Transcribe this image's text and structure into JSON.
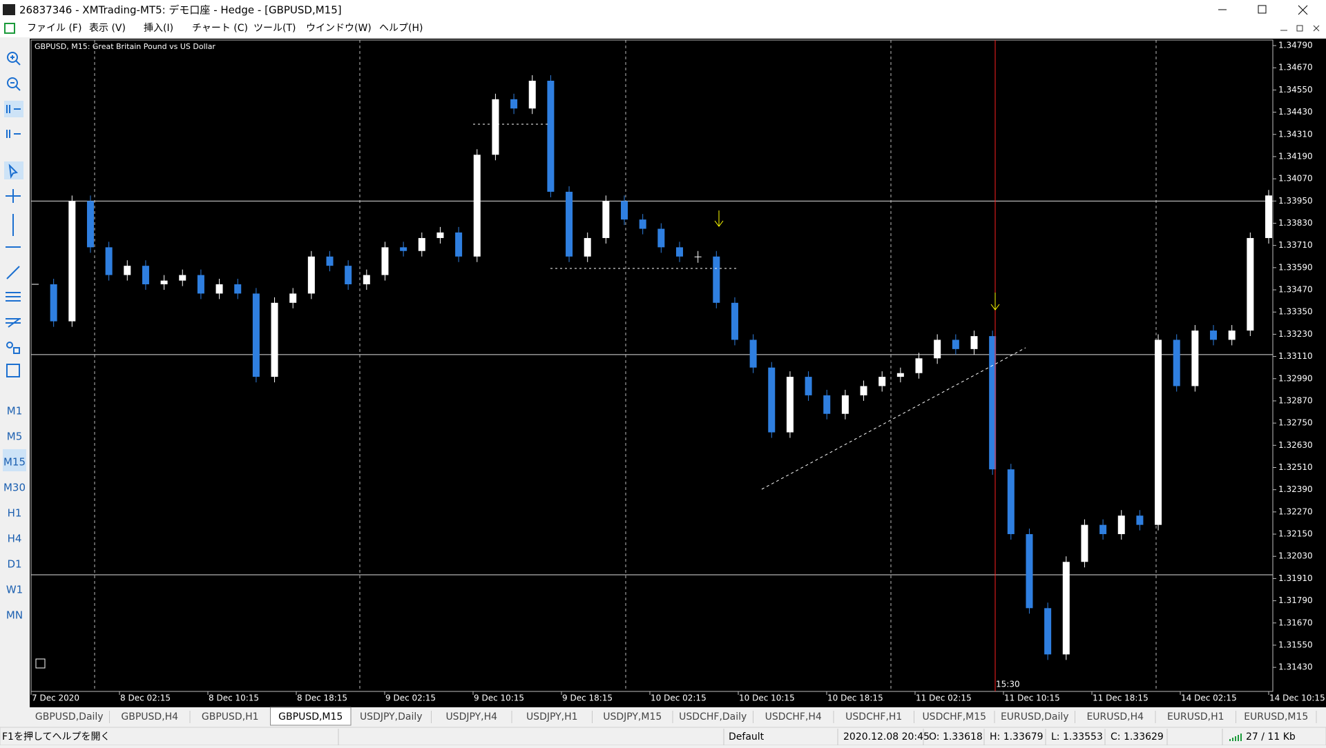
{
  "window": {
    "title": "26837346 - XMTrading-MT5: デモ口座 - Hedge - [GBPUSD,M15]"
  },
  "menu": [
    "ファイル (F)",
    "表示 (V)",
    "挿入(I)",
    "チャート (C)",
    "ツール(T)",
    "ウインドウ(W)",
    "ヘルプ(H)"
  ],
  "timeframes": [
    "M1",
    "M5",
    "M15",
    "M30",
    "H1",
    "H4",
    "D1",
    "W1",
    "MN"
  ],
  "chart_data": {
    "type": "candlestick",
    "title": "GBPUSD, M15:  Great Britain Pound vs US Dollar",
    "categories": [
      "7 Dec 2020",
      "8 Dec 02:15",
      "8 Dec 10:15",
      "8 Dec 18:15",
      "9 Dec 02:15",
      "9 Dec 10:15",
      "9 Dec 18:15",
      "10 Dec 02:15",
      "10 Dec 10:15",
      "10 Dec 18:15",
      "11 Dec 02:15",
      "11 Dec 10:15",
      "11 Dec 18:15",
      "14 Dec 02:15",
      "14 Dec 10:15"
    ],
    "closes": [
      1.335,
      1.333,
      1.3395,
      1.337,
      1.3355,
      1.336,
      1.335,
      1.3352,
      1.3355,
      1.3345,
      1.335,
      1.3345,
      1.33,
      1.334,
      1.3345,
      1.3365,
      1.336,
      1.335,
      1.3355,
      1.337,
      1.3368,
      1.3375,
      1.3378,
      1.3365,
      1.342,
      1.345,
      1.3445,
      1.346,
      1.34,
      1.3365,
      1.3375,
      1.3395,
      1.3385,
      1.338,
      1.337,
      1.3365,
      1.3365,
      1.334,
      1.332,
      1.3305,
      1.327,
      1.33,
      1.329,
      1.328,
      1.329,
      1.3295,
      1.33,
      1.3302,
      1.331,
      1.332,
      1.3315,
      1.3322,
      1.325,
      1.3215,
      1.3175,
      1.315,
      1.32,
      1.322,
      1.3215,
      1.3225,
      1.322,
      1.332,
      1.3295,
      1.3325,
      1.332,
      1.3325,
      1.3375,
      1.3398
    ],
    "up_color": "#ffffff",
    "down_color": "#2f7fe0",
    "levels": [
      1.3395,
      1.3312,
      1.3193
    ],
    "marker_label": "15:30",
    "ylim": [
      1.313,
      1.3482
    ],
    "yticks": [
      {
        "value": 1.3479,
        "label": "1.34790"
      },
      {
        "value": 1.3467,
        "label": "1.34670"
      },
      {
        "value": 1.3455,
        "label": "1.34550"
      },
      {
        "value": 1.3443,
        "label": "1.34430"
      },
      {
        "value": 1.3431,
        "label": "1.34310"
      },
      {
        "value": 1.3419,
        "label": "1.34190"
      },
      {
        "value": 1.3407,
        "label": "1.34070"
      },
      {
        "value": 1.3395,
        "label": "1.33950"
      },
      {
        "value": 1.3383,
        "label": "1.33830"
      },
      {
        "value": 1.3371,
        "label": "1.33710"
      },
      {
        "value": 1.3359,
        "label": "1.33590"
      },
      {
        "value": 1.3347,
        "label": "1.33470"
      },
      {
        "value": 1.3335,
        "label": "1.33350"
      },
      {
        "value": 1.3323,
        "label": "1.33230"
      },
      {
        "value": 1.3311,
        "label": "1.33110"
      },
      {
        "value": 1.3299,
        "label": "1.32990"
      },
      {
        "value": 1.3287,
        "label": "1.32870"
      },
      {
        "value": 1.3275,
        "label": "1.32750"
      },
      {
        "value": 1.3263,
        "label": "1.32630"
      },
      {
        "value": 1.3251,
        "label": "1.32510"
      },
      {
        "value": 1.3239,
        "label": "1.32390"
      },
      {
        "value": 1.3227,
        "label": "1.32270"
      },
      {
        "value": 1.3215,
        "label": "1.32150"
      },
      {
        "value": 1.3203,
        "label": "1.32030"
      },
      {
        "value": 1.3191,
        "label": "1.31910"
      },
      {
        "value": 1.3179,
        "label": "1.31790"
      },
      {
        "value": 1.3167,
        "label": "1.31670"
      },
      {
        "value": 1.3155,
        "label": "1.31550"
      },
      {
        "value": 1.3143,
        "label": "1.31430"
      }
    ]
  },
  "tabs": [
    "GBPUSD,Daily",
    "GBPUSD,H4",
    "GBPUSD,H1",
    "GBPUSD,M15",
    "USDJPY,Daily",
    "USDJPY,H4",
    "USDJPY,H1",
    "USDJPY,M15",
    "USDCHF,Daily",
    "USDCHF,H4",
    "USDCHF,H1",
    "USDCHF,M15",
    "EURUSD,Daily",
    "EURUSD,H4",
    "EURUSD,H1",
    "EURUSD,M15"
  ],
  "status": {
    "help": "F1を押してヘルプを開く",
    "profile": "Default",
    "time": "2020.12.08 20:45",
    "open": "O: 1.33618",
    "high": "H: 1.33679",
    "low": "L: 1.33553",
    "close": "C: 1.33629",
    "traffic": "27 / 11 Kb"
  }
}
